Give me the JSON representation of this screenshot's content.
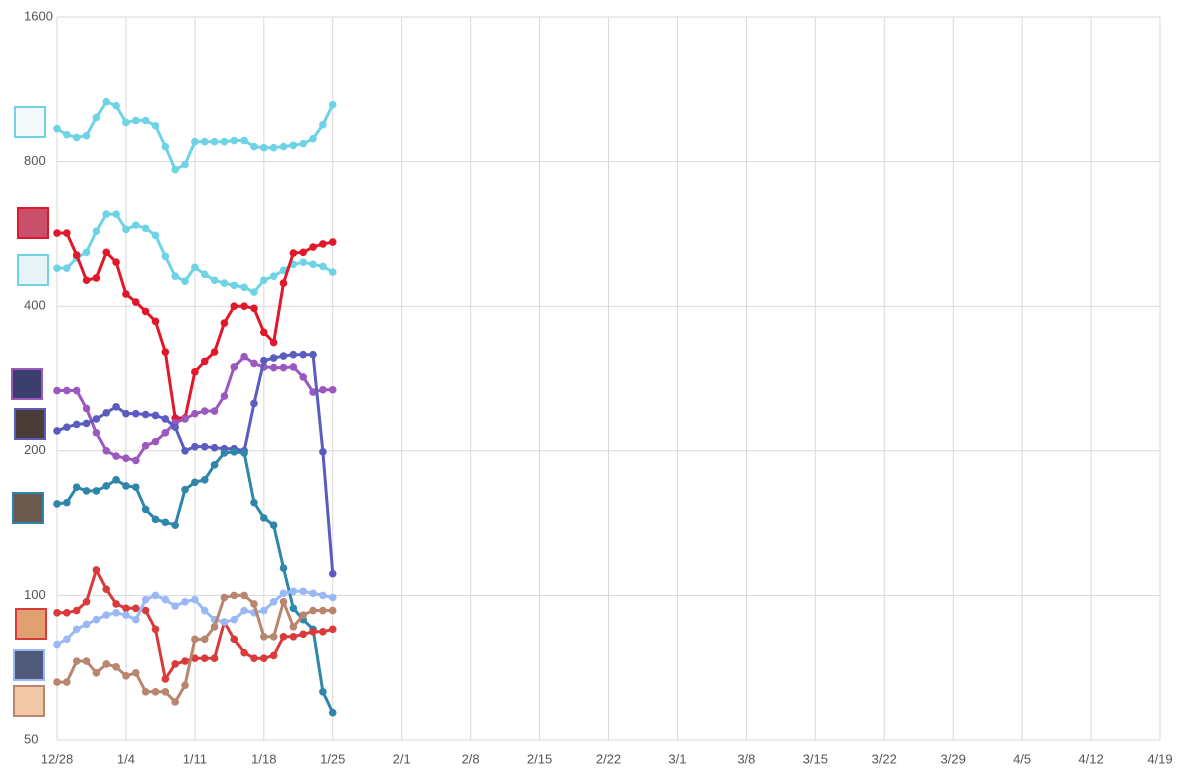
{
  "chart_data": {
    "type": "line",
    "log_scale": true,
    "grid": true,
    "x": [
      0,
      1,
      2,
      3,
      4,
      5,
      6,
      7,
      8,
      9,
      10,
      11,
      12,
      13,
      14,
      15,
      16,
      17,
      18,
      19,
      20,
      21,
      22,
      23,
      24,
      25,
      26,
      27,
      28
    ],
    "xlim": [
      0,
      112
    ],
    "xticks": [
      {
        "value": 0,
        "label": "12/28"
      },
      {
        "value": 7,
        "label": "1/4"
      },
      {
        "value": 14,
        "label": "1/11"
      },
      {
        "value": 21,
        "label": "1/18"
      },
      {
        "value": 28,
        "label": "1/25"
      },
      {
        "value": 35,
        "label": "2/1"
      },
      {
        "value": 42,
        "label": "2/8"
      },
      {
        "value": 49,
        "label": "2/15"
      },
      {
        "value": 56,
        "label": "2/22"
      },
      {
        "value": 63,
        "label": "3/1"
      },
      {
        "value": 70,
        "label": "3/8"
      },
      {
        "value": 77,
        "label": "3/15"
      },
      {
        "value": 84,
        "label": "3/22"
      },
      {
        "value": 91,
        "label": "3/29"
      },
      {
        "value": 98,
        "label": "4/5"
      },
      {
        "value": 105,
        "label": "4/12"
      },
      {
        "value": 112,
        "label": "4/19"
      }
    ],
    "ylim": [
      50,
      1600
    ],
    "yticks": [
      50,
      100,
      200,
      400,
      800,
      1600
    ],
    "series": [
      {
        "color": "#6dd3e5",
        "values": [
          937,
          910,
          898,
          906,
          988,
          1066,
          1046,
          965,
          974,
          974,
          950,
          860,
          770,
          789,
          880,
          880,
          880,
          880,
          885,
          885,
          860,
          855,
          855,
          860,
          865,
          872,
          893,
          955,
          1051
        ]
      },
      {
        "color": "#6dd3e5",
        "values": [
          480,
          480,
          504,
          518,
          573,
          622,
          622,
          578,
          590,
          581,
          562,
          508,
          462,
          451,
          482,
          466,
          453,
          447,
          442,
          438,
          428,
          453,
          462,
          475,
          489,
          494,
          489,
          484,
          471
        ]
      },
      {
        "color": "#e0182a",
        "values": [
          568,
          568,
          511,
          453,
          458,
          518,
          494,
          424,
          408,
          390,
          372,
          321,
          234,
          234,
          292,
          307,
          321,
          369,
          400,
          400,
          396,
          353,
          336,
          447,
          516,
          518,
          531,
          539,
          544
        ]
      },
      {
        "color": "#9b59c0",
        "values": [
          267,
          267,
          267,
          245,
          218,
          200,
          195,
          193,
          191,
          205,
          209,
          218,
          229,
          233,
          239,
          242,
          242,
          260,
          299,
          314,
          304,
          299,
          298,
          298,
          299,
          285,
          265,
          268,
          268
        ]
      },
      {
        "color": "#5b5cbf",
        "values": [
          220,
          224,
          227,
          228,
          233,
          240,
          247,
          239,
          239,
          238,
          237,
          233,
          224,
          200,
          204,
          204,
          203,
          202,
          202,
          200,
          251,
          308,
          312,
          315,
          317,
          317,
          317,
          199,
          111
        ]
      },
      {
        "color": "#2e86ab",
        "values": [
          155,
          156,
          168,
          165,
          165,
          169,
          174,
          169,
          168,
          151,
          144,
          142,
          140,
          166,
          172,
          174,
          187,
          198,
          199,
          198,
          156,
          145,
          140,
          114,
          94,
          89,
          85,
          63,
          57
        ]
      },
      {
        "color": "#d93a3c",
        "values": [
          92,
          92,
          93,
          97,
          113,
          103,
          96,
          94,
          94,
          93,
          85,
          67,
          72,
          73,
          74,
          74,
          74,
          88,
          81,
          76,
          74,
          74,
          75,
          82,
          82,
          83,
          84,
          84,
          85
        ]
      },
      {
        "color": "#9ab8f5",
        "values": [
          79,
          81,
          85,
          87,
          89,
          91,
          92,
          91,
          89,
          98,
          100,
          98,
          95,
          97,
          98,
          93,
          89,
          88,
          89,
          93,
          92,
          93,
          97,
          101,
          102,
          102,
          101,
          100,
          99
        ]
      },
      {
        "color": "#b8856f",
        "values": [
          66,
          66,
          73,
          73,
          69,
          72,
          71,
          68,
          69,
          63,
          63,
          63,
          60,
          65,
          81,
          81,
          86,
          99,
          100,
          100,
          96,
          82,
          82,
          97,
          86,
          91,
          93,
          93,
          93
        ]
      }
    ]
  }
}
